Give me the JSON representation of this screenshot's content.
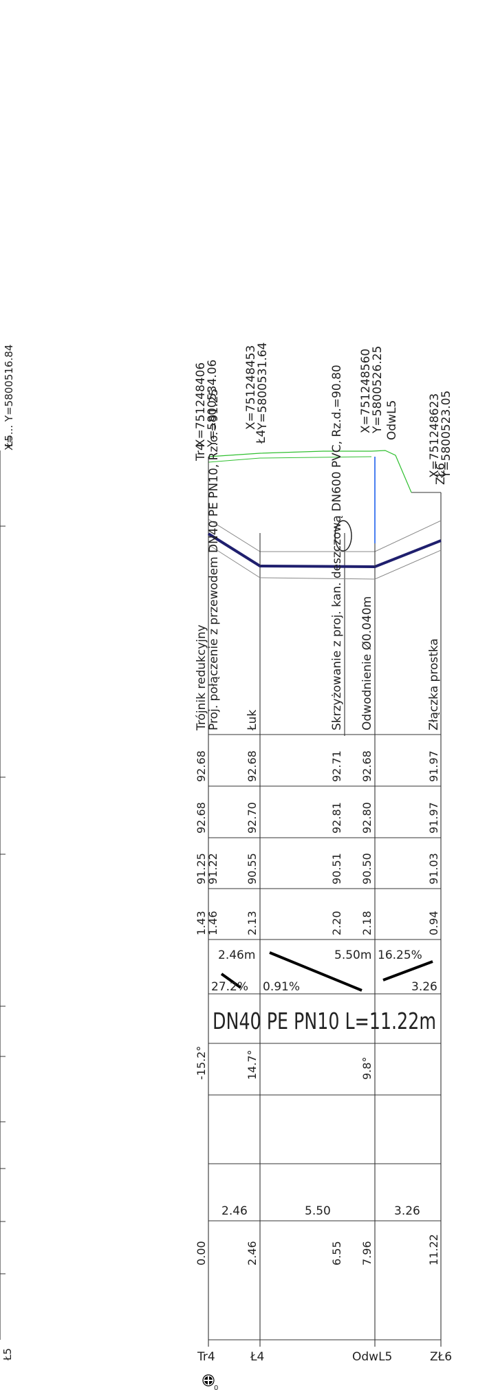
{
  "left_edge": {
    "coords_cut": "X=... Y=5800516.84",
    "top_label": "Ł5",
    "bottom_label": "Ł5"
  },
  "nodes": [
    {
      "label": "Tr4",
      "x": "X=751248406",
      "y": "Y=5800534.06"
    },
    {
      "label": "Ł4",
      "x": "X=751248453",
      "y": "Y=5800531.64"
    },
    {
      "label": "OdwL5",
      "x": "X=751248560",
      "y": "Y=5800526.25"
    },
    {
      "label": "ZŁ6",
      "x": "X=751248623",
      "y": "Y=5800523.05"
    }
  ],
  "annotations": {
    "tr4_line1": "Trójnik redukcyjny",
    "tr4_line2": "Proj. połączenie z przewodem DN40 PE PN10, Rz.o.=91.25",
    "l4": "Łuk",
    "crossing": "Skrzyżowanie z proj. kan. deszczową DN600 PVC, Rz.d.=90.80",
    "odw": "Odwodnienie Ø0.040m",
    "zl6": "Złączka prostka"
  },
  "table": {
    "ground": [
      "92.68",
      "92.68",
      "92.71",
      "92.68",
      "91.97"
    ],
    "terrain": [
      "92.68",
      "92.70",
      "92.81",
      "92.80",
      "91.97"
    ],
    "pipe_top": [
      "91.25",
      "91.22",
      "90.55",
      "90.51",
      "90.50",
      "91.03"
    ],
    "depth": [
      "1.43",
      "1.46",
      "2.13",
      "2.20",
      "2.18",
      "0.94"
    ],
    "slopes": [
      {
        "length": "2.46m",
        "grade": "27.2%"
      },
      {
        "length": "5.50m",
        "grade": "0.91%"
      },
      {
        "length": "3.26",
        "grade": "16.25%"
      }
    ],
    "pipe_spec": "DN40 PE PN10 L=11.22m",
    "angles": [
      "-15.2°",
      "14.7°",
      "9.8°"
    ],
    "segment_lengths": [
      "2.46",
      "5.50",
      "3.26"
    ],
    "stations": [
      "0.00",
      "2.46",
      "6.55",
      "7.96",
      "11.22"
    ]
  },
  "bottom_labels": [
    "Tr4",
    "Ł4",
    "OdwL5",
    "ZŁ6"
  ],
  "colors": {
    "line": "#333333",
    "pipe": "#1f1f6e",
    "terrain": "#2fbf2f",
    "water": "#4a7ff0"
  }
}
